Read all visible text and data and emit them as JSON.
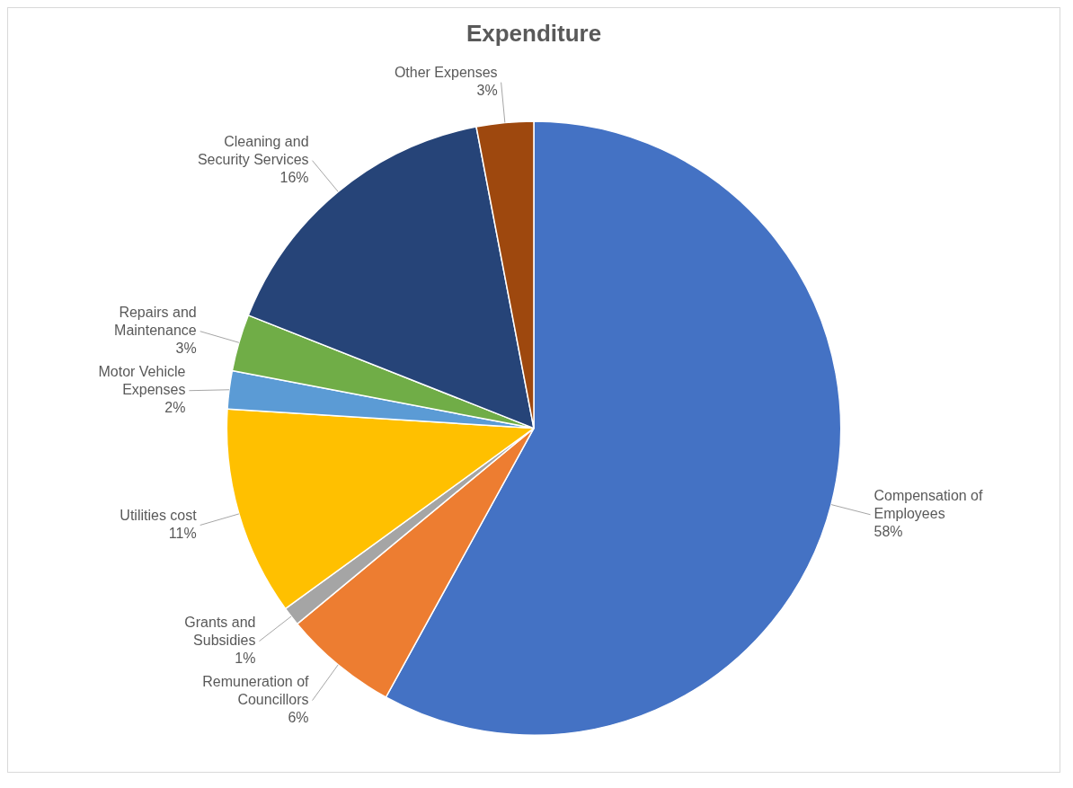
{
  "chart_data": {
    "type": "pie",
    "title": "Expenditure",
    "categories": [
      "Compensation of Employees",
      "Remuneration of Councillors",
      "Grants and Subsidies",
      "Utilities cost",
      "Motor Vehicle Expenses",
      "Repairs and Maintenance",
      "Cleaning and Security Services",
      "Other Expenses"
    ],
    "values": [
      58,
      6,
      1,
      11,
      2,
      3,
      16,
      3
    ],
    "colors": [
      "#4472c4",
      "#ed7d31",
      "#a5a5a5",
      "#ffc000",
      "#5b9bd5",
      "#70ad47",
      "#264478",
      "#9e480e"
    ],
    "value_labels": [
      "58%",
      "6%",
      "1%",
      "11%",
      "2%",
      "3%",
      "16%",
      "3%"
    ],
    "legend": false
  }
}
